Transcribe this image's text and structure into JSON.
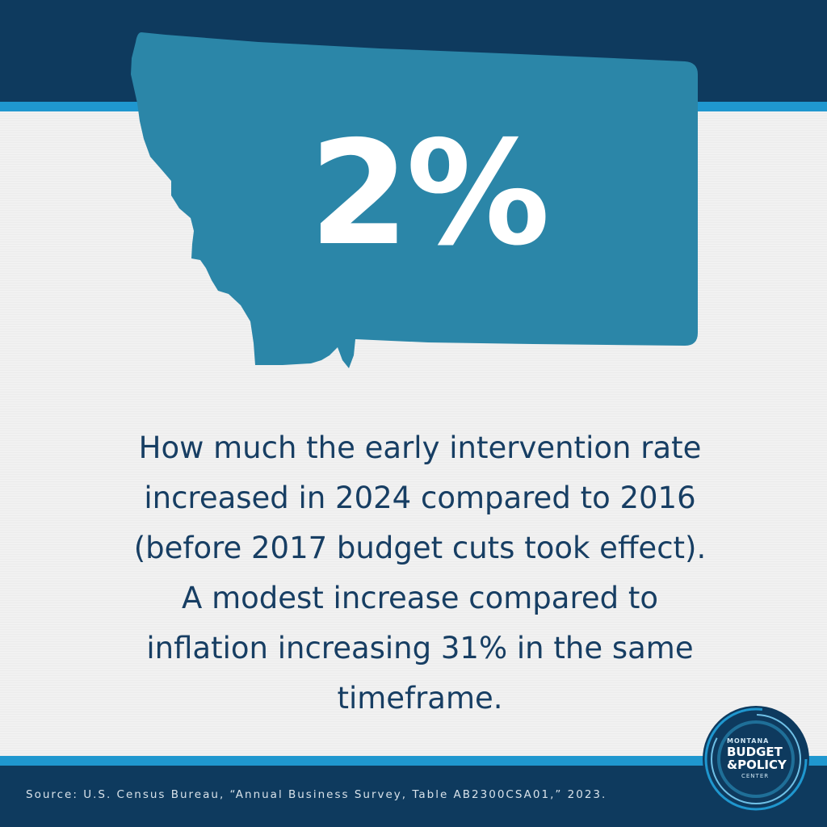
{
  "stat": {
    "value": "2%",
    "description": "How much the early intervention rate increased in 2024 compared to 2016 (before 2017 budget cuts took effect). A modest increase compared to inflation increasing 31% in the same timeframe."
  },
  "footer": {
    "source": "Source: U.S. Census Bureau, “Annual Business Survey, Table AB2300CSA01,” 2023."
  },
  "logo": {
    "line1": "MONTANA",
    "line2": "BUDGET",
    "line3": "&POLICY",
    "line4": "CENTER"
  },
  "colors": {
    "navy": "#0e3a5e",
    "accent_blue": "#1f97cf",
    "state_teal": "#2b86a8",
    "text_navy": "#173e63",
    "background": "#f1f1f1"
  }
}
